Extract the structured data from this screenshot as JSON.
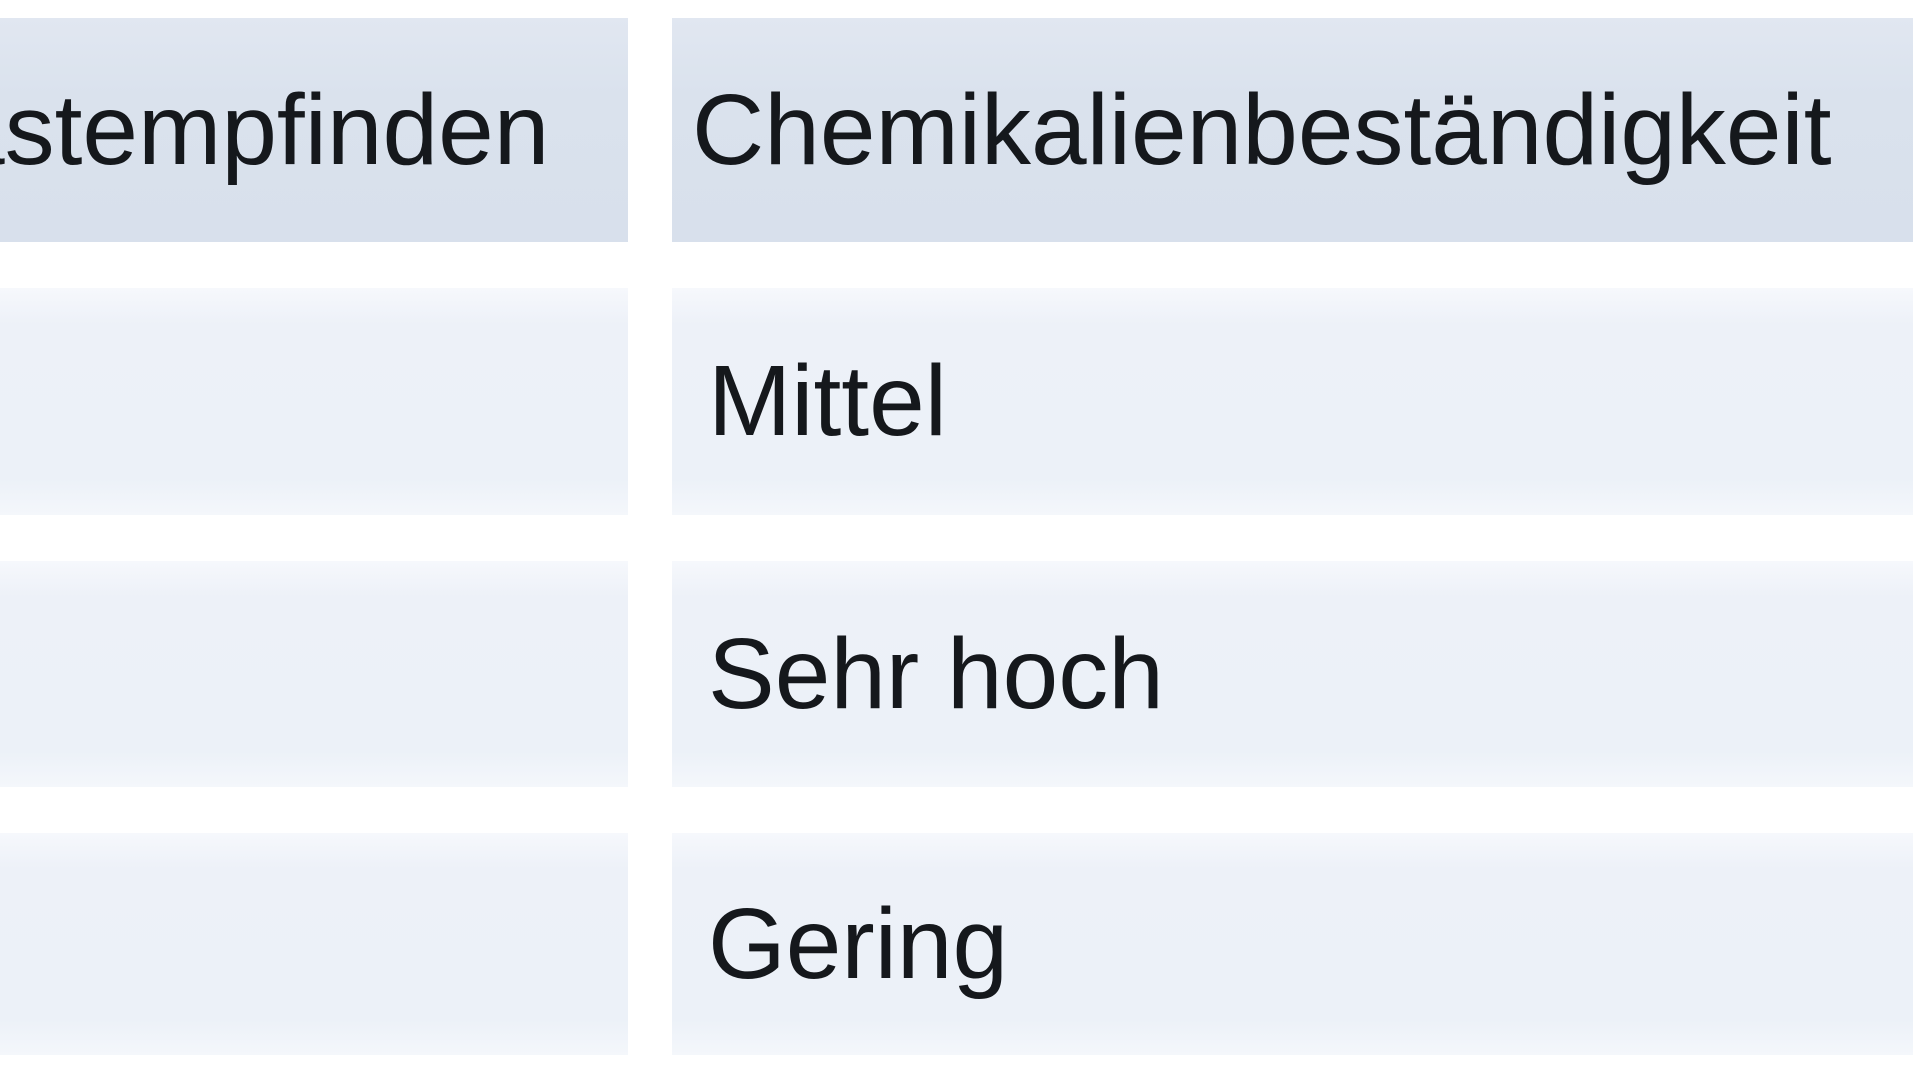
{
  "table": {
    "headers": [
      "Tastempfinden",
      "Chemikalienbeständigkeit"
    ],
    "rows": [
      [
        "",
        "Mittel"
      ],
      [
        "",
        "Sehr hoch"
      ],
      [
        "",
        "Gering"
      ]
    ]
  },
  "colors": {
    "page_background": "#ffffff",
    "header_cell_background": "#dae2ed",
    "body_cell_background": "#edf1f8",
    "cell_gutter": "#ffffff",
    "text": "#15181c"
  }
}
